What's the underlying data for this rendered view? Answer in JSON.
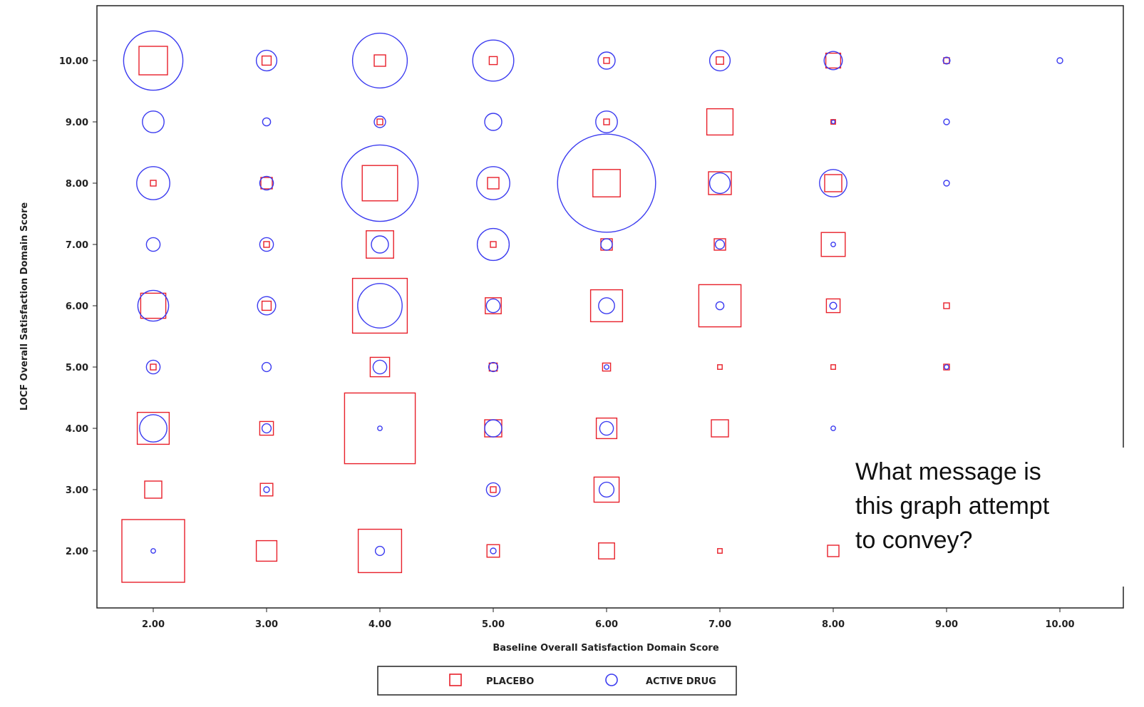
{
  "chart_data": {
    "type": "scatter",
    "subtype": "bubble",
    "title": "",
    "xlabel": "Baseline Overall Satisfaction Domain Score",
    "ylabel": "LOCF Overall Satisfaction Domain Score",
    "xlim": [
      1.5,
      10.5
    ],
    "ylim": [
      1.55,
      10.95
    ],
    "x_ticks": [
      2,
      3,
      4,
      5,
      6,
      7,
      8,
      9,
      10
    ],
    "y_ticks": [
      2,
      3,
      4,
      5,
      6,
      7,
      8,
      9,
      10
    ],
    "x_tick_labels": [
      "2.00",
      "3.00",
      "4.00",
      "5.00",
      "6.00",
      "7.00",
      "8.00",
      "9.00",
      "10.00"
    ],
    "y_tick_labels": [
      "2.00",
      "3.00",
      "4.00",
      "5.00",
      "6.00",
      "7.00",
      "8.00",
      "9.00",
      "10.00"
    ],
    "grid": false,
    "legend_position": "bottom",
    "legend": [
      {
        "name": "PLACEBO",
        "marker": "square",
        "color": "#e8202a"
      },
      {
        "name": "ACTIVE DRUG",
        "marker": "circle",
        "color": "#3b3bf0"
      }
    ],
    "size_note": "relative marker size (1 = smallest)",
    "series": [
      {
        "name": "PLACEBO",
        "marker": "square",
        "color": "#e8202a",
        "points": [
          {
            "x": 2,
            "y": 10,
            "size": 5
          },
          {
            "x": 3,
            "y": 10,
            "size": 1.6
          },
          {
            "x": 4,
            "y": 10,
            "size": 2
          },
          {
            "x": 5,
            "y": 10,
            "size": 1.4
          },
          {
            "x": 6,
            "y": 10,
            "size": 1
          },
          {
            "x": 7,
            "y": 10,
            "size": 1.3
          },
          {
            "x": 8,
            "y": 10,
            "size": 2.6
          },
          {
            "x": 9,
            "y": 10,
            "size": 1
          },
          {
            "x": 4,
            "y": 9,
            "size": 1
          },
          {
            "x": 6,
            "y": 9,
            "size": 1
          },
          {
            "x": 7,
            "y": 9,
            "size": 4.6
          },
          {
            "x": 8,
            "y": 9,
            "size": 0.8
          },
          {
            "x": 2,
            "y": 8,
            "size": 1
          },
          {
            "x": 3,
            "y": 8,
            "size": 2
          },
          {
            "x": 4,
            "y": 8,
            "size": 6.2
          },
          {
            "x": 5,
            "y": 8,
            "size": 2
          },
          {
            "x": 6,
            "y": 8,
            "size": 4.8
          },
          {
            "x": 7,
            "y": 8,
            "size": 4
          },
          {
            "x": 8,
            "y": 8,
            "size": 3
          },
          {
            "x": 3,
            "y": 7,
            "size": 1
          },
          {
            "x": 4,
            "y": 7,
            "size": 4.8
          },
          {
            "x": 5,
            "y": 7,
            "size": 1
          },
          {
            "x": 6,
            "y": 7,
            "size": 2
          },
          {
            "x": 7,
            "y": 7,
            "size": 2
          },
          {
            "x": 8,
            "y": 7,
            "size": 4.2
          },
          {
            "x": 2,
            "y": 6,
            "size": 4.4
          },
          {
            "x": 3,
            "y": 6,
            "size": 1.6
          },
          {
            "x": 4,
            "y": 6,
            "size": 9.6
          },
          {
            "x": 5,
            "y": 6,
            "size": 2.8
          },
          {
            "x": 6,
            "y": 6,
            "size": 5.6
          },
          {
            "x": 7,
            "y": 6,
            "size": 7.4
          },
          {
            "x": 8,
            "y": 6,
            "size": 2.4
          },
          {
            "x": 9,
            "y": 6,
            "size": 1
          },
          {
            "x": 2,
            "y": 5,
            "size": 1
          },
          {
            "x": 4,
            "y": 5,
            "size": 3.4
          },
          {
            "x": 5,
            "y": 5,
            "size": 1.4
          },
          {
            "x": 6,
            "y": 5,
            "size": 1.4
          },
          {
            "x": 7,
            "y": 5,
            "size": 0.8
          },
          {
            "x": 8,
            "y": 5,
            "size": 0.8
          },
          {
            "x": 9,
            "y": 5,
            "size": 1
          },
          {
            "x": 2,
            "y": 4,
            "size": 5.6
          },
          {
            "x": 3,
            "y": 4,
            "size": 2.4
          },
          {
            "x": 4,
            "y": 4,
            "size": 12.4
          },
          {
            "x": 5,
            "y": 4,
            "size": 3
          },
          {
            "x": 6,
            "y": 4,
            "size": 3.6
          },
          {
            "x": 7,
            "y": 4,
            "size": 3
          },
          {
            "x": 2,
            "y": 3,
            "size": 3
          },
          {
            "x": 3,
            "y": 3,
            "size": 2.2
          },
          {
            "x": 5,
            "y": 3,
            "size": 1
          },
          {
            "x": 6,
            "y": 3,
            "size": 4.4
          },
          {
            "x": 2,
            "y": 2,
            "size": 11
          },
          {
            "x": 3,
            "y": 2,
            "size": 3.6
          },
          {
            "x": 4,
            "y": 2,
            "size": 7.6
          },
          {
            "x": 5,
            "y": 2,
            "size": 2.2
          },
          {
            "x": 6,
            "y": 2,
            "size": 2.8
          },
          {
            "x": 7,
            "y": 2,
            "size": 0.8
          },
          {
            "x": 8,
            "y": 2,
            "size": 2
          }
        ]
      },
      {
        "name": "ACTIVE DRUG",
        "marker": "circle",
        "color": "#3b3bf0",
        "points": [
          {
            "x": 2,
            "y": 10,
            "size": 10.4
          },
          {
            "x": 3,
            "y": 10,
            "size": 3.6
          },
          {
            "x": 4,
            "y": 10,
            "size": 9.6
          },
          {
            "x": 5,
            "y": 10,
            "size": 7.2
          },
          {
            "x": 6,
            "y": 10,
            "size": 3
          },
          {
            "x": 7,
            "y": 10,
            "size": 3.6
          },
          {
            "x": 8,
            "y": 10,
            "size": 3.2
          },
          {
            "x": 9,
            "y": 10,
            "size": 1.2
          },
          {
            "x": 10,
            "y": 10,
            "size": 1
          },
          {
            "x": 2,
            "y": 9,
            "size": 3.8
          },
          {
            "x": 3,
            "y": 9,
            "size": 1.4
          },
          {
            "x": 4,
            "y": 9,
            "size": 2
          },
          {
            "x": 5,
            "y": 9,
            "size": 3
          },
          {
            "x": 6,
            "y": 9,
            "size": 3.8
          },
          {
            "x": 8,
            "y": 9,
            "size": 0.6
          },
          {
            "x": 9,
            "y": 9,
            "size": 1
          },
          {
            "x": 2,
            "y": 8,
            "size": 5.8
          },
          {
            "x": 3,
            "y": 8,
            "size": 2.4
          },
          {
            "x": 4,
            "y": 8,
            "size": 13.4
          },
          {
            "x": 5,
            "y": 8,
            "size": 5.8
          },
          {
            "x": 6,
            "y": 8,
            "size": 17.2
          },
          {
            "x": 7,
            "y": 8,
            "size": 3.6
          },
          {
            "x": 8,
            "y": 8,
            "size": 4.8
          },
          {
            "x": 9,
            "y": 8,
            "size": 1
          },
          {
            "x": 2,
            "y": 7,
            "size": 2.4
          },
          {
            "x": 3,
            "y": 7,
            "size": 2.4
          },
          {
            "x": 4,
            "y": 7,
            "size": 3
          },
          {
            "x": 5,
            "y": 7,
            "size": 5.6
          },
          {
            "x": 6,
            "y": 7,
            "size": 2
          },
          {
            "x": 7,
            "y": 7,
            "size": 1.6
          },
          {
            "x": 8,
            "y": 7,
            "size": 0.8
          },
          {
            "x": 2,
            "y": 6,
            "size": 5.4
          },
          {
            "x": 3,
            "y": 6,
            "size": 3.2
          },
          {
            "x": 4,
            "y": 6,
            "size": 7.8
          },
          {
            "x": 5,
            "y": 6,
            "size": 2.4
          },
          {
            "x": 6,
            "y": 6,
            "size": 2.8
          },
          {
            "x": 7,
            "y": 6,
            "size": 1.4
          },
          {
            "x": 8,
            "y": 6,
            "size": 1.2
          },
          {
            "x": 2,
            "y": 5,
            "size": 2.4
          },
          {
            "x": 3,
            "y": 5,
            "size": 1.6
          },
          {
            "x": 4,
            "y": 5,
            "size": 2.4
          },
          {
            "x": 5,
            "y": 5,
            "size": 1.6
          },
          {
            "x": 6,
            "y": 5,
            "size": 0.8
          },
          {
            "x": 9,
            "y": 5,
            "size": 0.8
          },
          {
            "x": 2,
            "y": 4,
            "size": 4.8
          },
          {
            "x": 3,
            "y": 4,
            "size": 1.6
          },
          {
            "x": 4,
            "y": 4,
            "size": 0.8
          },
          {
            "x": 5,
            "y": 4,
            "size": 3
          },
          {
            "x": 6,
            "y": 4,
            "size": 2.4
          },
          {
            "x": 8,
            "y": 4,
            "size": 0.8
          },
          {
            "x": 3,
            "y": 3,
            "size": 1
          },
          {
            "x": 5,
            "y": 3,
            "size": 2.4
          },
          {
            "x": 6,
            "y": 3,
            "size": 2.6
          },
          {
            "x": 2,
            "y": 2,
            "size": 0.8
          },
          {
            "x": 4,
            "y": 2,
            "size": 1.6
          },
          {
            "x": 5,
            "y": 2,
            "size": 1
          }
        ]
      }
    ]
  },
  "annotation": {
    "lines": [
      "What message is",
      "this graph attempt",
      "to convey?"
    ]
  },
  "legend_labels": {
    "placebo": "PLACEBO",
    "active": "ACTIVE DRUG"
  }
}
